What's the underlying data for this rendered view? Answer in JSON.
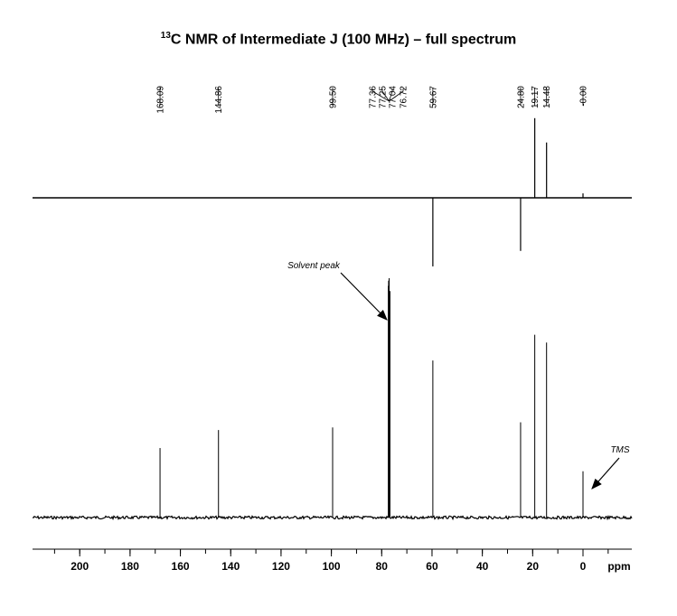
{
  "title": {
    "superscript": "13",
    "text": "C NMR of Intermediate J (100 MHz) – full spectrum"
  },
  "chart_data": {
    "type": "line",
    "xlabel": "ppm",
    "xlim": [
      220,
      -20
    ],
    "x_reversed": true,
    "grid": false,
    "x_ticks": [
      200,
      180,
      160,
      140,
      120,
      100,
      80,
      60,
      40,
      20,
      0
    ],
    "peak_labels": [
      "168.09",
      "144.86",
      "99.50",
      "77.36",
      "77.25",
      "77.04",
      "76.72",
      "59.67",
      "24.80",
      "19.17",
      "14.48",
      "-0.00"
    ],
    "series": [
      {
        "kind": "dept",
        "peaks": [
          {
            "ppm": 59.67,
            "intensity": -0.31
          },
          {
            "ppm": 24.8,
            "intensity": -0.24
          },
          {
            "ppm": 19.17,
            "intensity": 0.36
          },
          {
            "ppm": 14.48,
            "intensity": 0.25
          },
          {
            "ppm": 0.0,
            "intensity": 0.02
          }
        ]
      },
      {
        "kind": "carbon",
        "peaks": [
          {
            "ppm": 168.09,
            "intensity": 0.27
          },
          {
            "ppm": 144.86,
            "intensity": 0.34
          },
          {
            "ppm": 99.5,
            "intensity": 0.35
          },
          {
            "ppm": 77.36,
            "intensity": 0.9
          },
          {
            "ppm": 77.25,
            "intensity": 0.92
          },
          {
            "ppm": 77.04,
            "intensity": 0.93
          },
          {
            "ppm": 76.72,
            "intensity": 0.88
          },
          {
            "ppm": 59.67,
            "intensity": 0.61
          },
          {
            "ppm": 24.8,
            "intensity": 0.37
          },
          {
            "ppm": 19.17,
            "intensity": 0.71
          },
          {
            "ppm": 14.48,
            "intensity": 0.68
          },
          {
            "ppm": 0.0,
            "intensity": 0.18
          }
        ]
      }
    ],
    "annotations": [
      {
        "text": "Solvent peak",
        "target_ppm": 77.25
      },
      {
        "text": "TMS",
        "target_ppm": 0.0
      }
    ]
  }
}
